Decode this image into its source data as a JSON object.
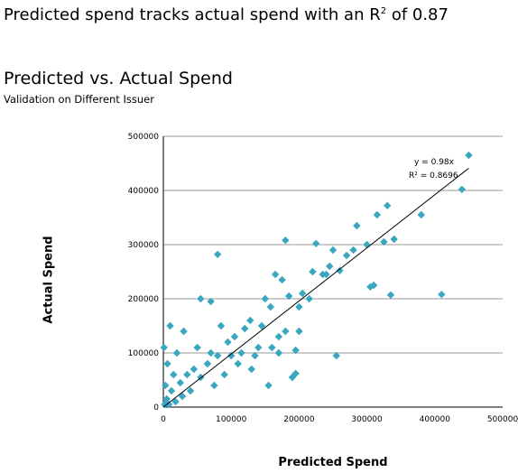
{
  "headline": {
    "text_before": "Predicted spend tracks actual spend with an R",
    "superscript": "2",
    "text_after": " of 0.87"
  },
  "chart_data": {
    "type": "scatter",
    "title": "Predicted vs. Actual Spend",
    "subtitle": "Validation on Different Issuer",
    "xlabel": "Predicted Spend",
    "ylabel": "Actual Spend",
    "xlim": [
      0,
      500000
    ],
    "ylim": [
      0,
      500000
    ],
    "x_ticks": [
      "0",
      "100000",
      "200000",
      "300000",
      "400000",
      "500000"
    ],
    "y_ticks": [
      "0",
      "100000",
      "200000",
      "300000",
      "400000",
      "500000"
    ],
    "grid": "horizontal",
    "marker_color": "#3aa7c0",
    "trendline": {
      "slope": 0.98,
      "equation_label": "y = 0.98x",
      "r2_label": "R² = 0.8696"
    },
    "points": [
      [
        450000,
        465000
      ],
      [
        440000,
        402000
      ],
      [
        410000,
        208000
      ],
      [
        380000,
        355000
      ],
      [
        340000,
        310000
      ],
      [
        335000,
        207000
      ],
      [
        330000,
        372000
      ],
      [
        325000,
        305000
      ],
      [
        315000,
        355000
      ],
      [
        310000,
        225000
      ],
      [
        305000,
        222000
      ],
      [
        300000,
        300000
      ],
      [
        285000,
        335000
      ],
      [
        280000,
        290000
      ],
      [
        270000,
        280000
      ],
      [
        260000,
        252000
      ],
      [
        255000,
        95000
      ],
      [
        250000,
        290000
      ],
      [
        245000,
        260000
      ],
      [
        240000,
        245000
      ],
      [
        235000,
        245000
      ],
      [
        225000,
        302000
      ],
      [
        220000,
        250000
      ],
      [
        215000,
        200000
      ],
      [
        205000,
        210000
      ],
      [
        200000,
        185000
      ],
      [
        200000,
        140000
      ],
      [
        195000,
        105000
      ],
      [
        195000,
        62000
      ],
      [
        190000,
        55000
      ],
      [
        185000,
        205000
      ],
      [
        180000,
        308000
      ],
      [
        180000,
        140000
      ],
      [
        175000,
        235000
      ],
      [
        170000,
        130000
      ],
      [
        170000,
        100000
      ],
      [
        165000,
        245000
      ],
      [
        160000,
        110000
      ],
      [
        158000,
        185000
      ],
      [
        155000,
        40000
      ],
      [
        150000,
        200000
      ],
      [
        145000,
        150000
      ],
      [
        140000,
        110000
      ],
      [
        135000,
        95000
      ],
      [
        130000,
        70000
      ],
      [
        128000,
        160000
      ],
      [
        120000,
        145000
      ],
      [
        115000,
        100000
      ],
      [
        110000,
        80000
      ],
      [
        105000,
        130000
      ],
      [
        100000,
        95000
      ],
      [
        95000,
        120000
      ],
      [
        90000,
        60000
      ],
      [
        85000,
        150000
      ],
      [
        80000,
        282000
      ],
      [
        80000,
        95000
      ],
      [
        75000,
        40000
      ],
      [
        70000,
        100000
      ],
      [
        70000,
        195000
      ],
      [
        65000,
        80000
      ],
      [
        55000,
        200000
      ],
      [
        55000,
        55000
      ],
      [
        50000,
        110000
      ],
      [
        45000,
        70000
      ],
      [
        40000,
        30000
      ],
      [
        35000,
        60000
      ],
      [
        30000,
        140000
      ],
      [
        28000,
        20000
      ],
      [
        25000,
        45000
      ],
      [
        20000,
        100000
      ],
      [
        18000,
        10000
      ],
      [
        15000,
        60000
      ],
      [
        12000,
        30000
      ],
      [
        10000,
        150000
      ],
      [
        8000,
        5000
      ],
      [
        6000,
        80000
      ],
      [
        5000,
        15000
      ],
      [
        3000,
        40000
      ],
      [
        2000,
        5000
      ],
      [
        1000,
        110000
      ]
    ]
  }
}
